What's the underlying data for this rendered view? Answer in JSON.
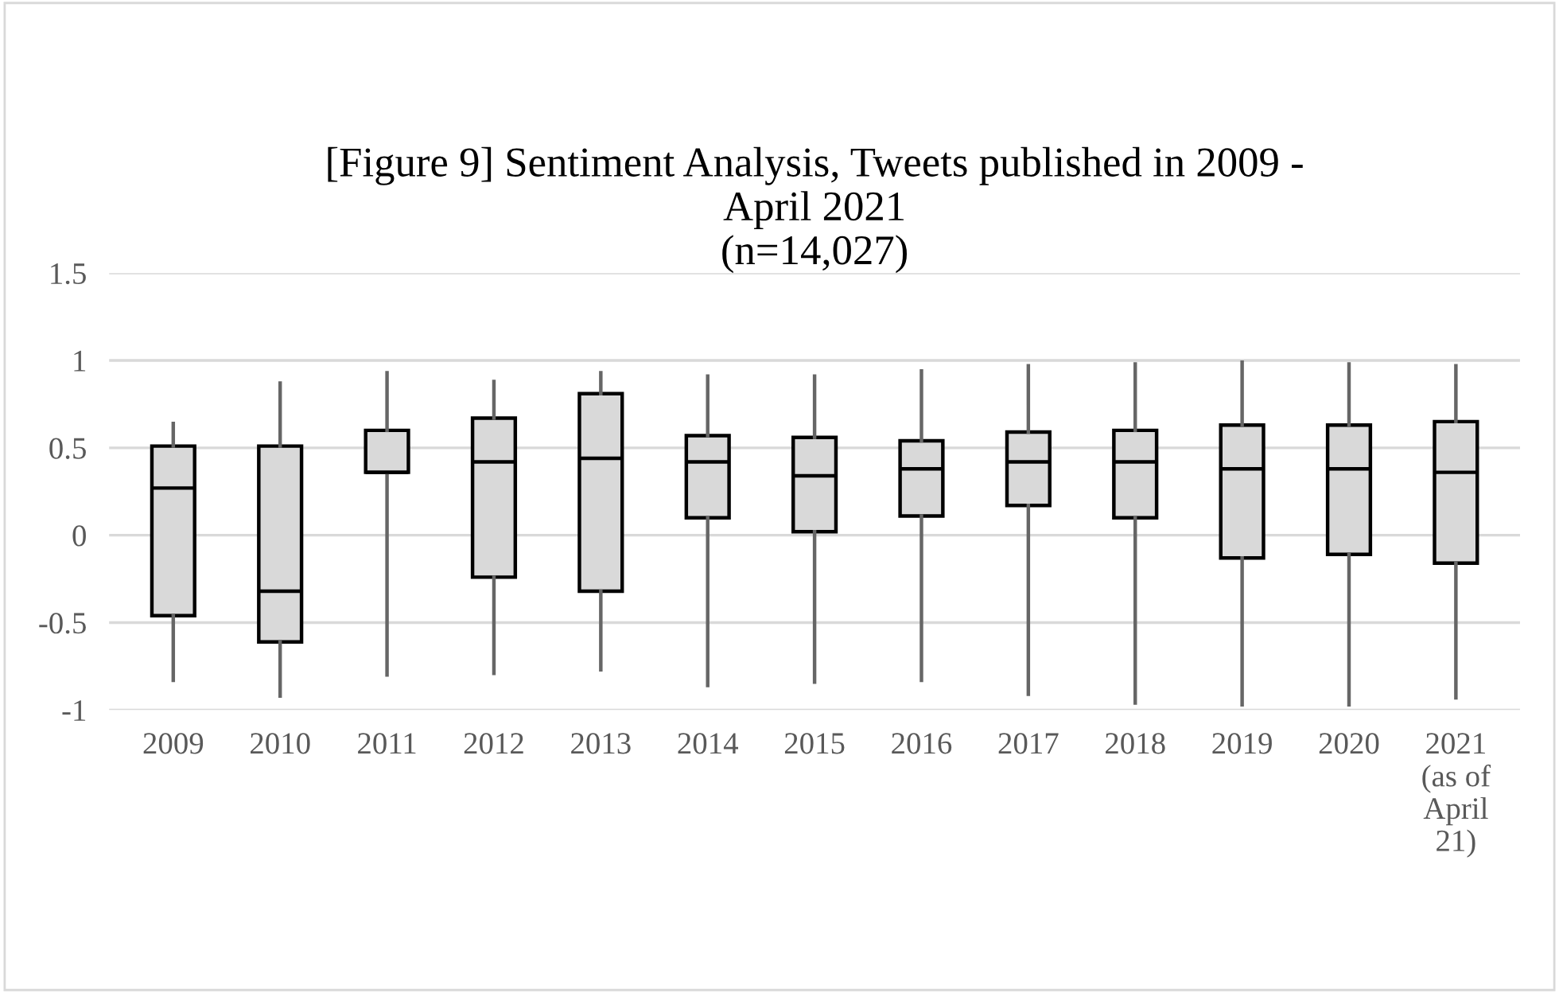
{
  "chart_data": {
    "type": "box",
    "title": "[Figure 9] Sentiment Analysis, Tweets published in 2009 -\nApril 2021\n(n=14,027)",
    "categories": [
      "2009",
      "2010",
      "2011",
      "2012",
      "2013",
      "2014",
      "2015",
      "2016",
      "2017",
      "2018",
      "2019",
      "2020",
      "2021\n(as of\nApril\n21)"
    ],
    "boxes": [
      {
        "low": -0.83,
        "q1": -0.46,
        "median": 0.27,
        "q3": 0.51,
        "high": 0.64
      },
      {
        "low": -0.92,
        "q1": -0.61,
        "median": -0.32,
        "q3": 0.51,
        "high": 0.87
      },
      {
        "low": -0.8,
        "q1": 0.36,
        "median": 0.36,
        "q3": 0.6,
        "high": 0.93
      },
      {
        "low": -0.79,
        "q1": -0.24,
        "median": 0.42,
        "q3": 0.67,
        "high": 0.88
      },
      {
        "low": -0.77,
        "q1": -0.32,
        "median": 0.44,
        "q3": 0.81,
        "high": 0.93
      },
      {
        "low": -0.86,
        "q1": 0.1,
        "median": 0.42,
        "q3": 0.57,
        "high": 0.91
      },
      {
        "low": -0.84,
        "q1": 0.02,
        "median": 0.34,
        "q3": 0.56,
        "high": 0.91
      },
      {
        "low": -0.83,
        "q1": 0.11,
        "median": 0.38,
        "q3": 0.54,
        "high": 0.94
      },
      {
        "low": -0.91,
        "q1": 0.17,
        "median": 0.42,
        "q3": 0.59,
        "high": 0.97
      },
      {
        "low": -0.96,
        "q1": 0.1,
        "median": 0.42,
        "q3": 0.6,
        "high": 0.98
      },
      {
        "low": -0.97,
        "q1": -0.13,
        "median": 0.38,
        "q3": 0.63,
        "high": 0.99
      },
      {
        "low": -0.97,
        "q1": -0.11,
        "median": 0.38,
        "q3": 0.63,
        "high": 0.98
      },
      {
        "low": -0.93,
        "q1": -0.16,
        "median": 0.36,
        "q3": 0.65,
        "high": 0.97
      }
    ],
    "color": "#d9d9d9",
    "ylim": [
      -1,
      1.5
    ],
    "yticks": [
      -1,
      -0.5,
      0,
      0.5,
      1,
      1.5
    ],
    "grid": "y"
  }
}
